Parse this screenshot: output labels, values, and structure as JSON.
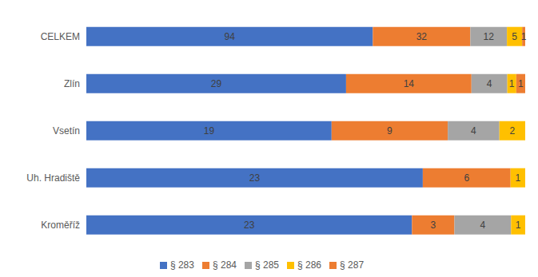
{
  "chart_data": {
    "type": "bar",
    "orientation": "horizontal",
    "stacked": true,
    "data_labels": true,
    "tick_labels": "y",
    "grid": false,
    "legend": "bottom",
    "categories": [
      "CELKEM",
      "Zlín",
      "Vsetín",
      "Uh. Hradiště",
      "Kroměříž"
    ],
    "series": [
      {
        "name": "§ 283",
        "color": "#4472c4",
        "values": [
          94,
          29,
          19,
          23,
          23
        ]
      },
      {
        "name": "§ 284",
        "color": "#ed7d31",
        "values": [
          32,
          14,
          9,
          6,
          3
        ]
      },
      {
        "name": "§ 285",
        "color": "#a5a5a5",
        "values": [
          12,
          4,
          4,
          0,
          4
        ]
      },
      {
        "name": "§ 286",
        "color": "#ffc000",
        "values": [
          5,
          1,
          2,
          1,
          1
        ]
      },
      {
        "name": "§ 287",
        "color": "#ed7d31",
        "values": [
          1,
          1,
          0,
          0,
          0
        ]
      }
    ]
  }
}
